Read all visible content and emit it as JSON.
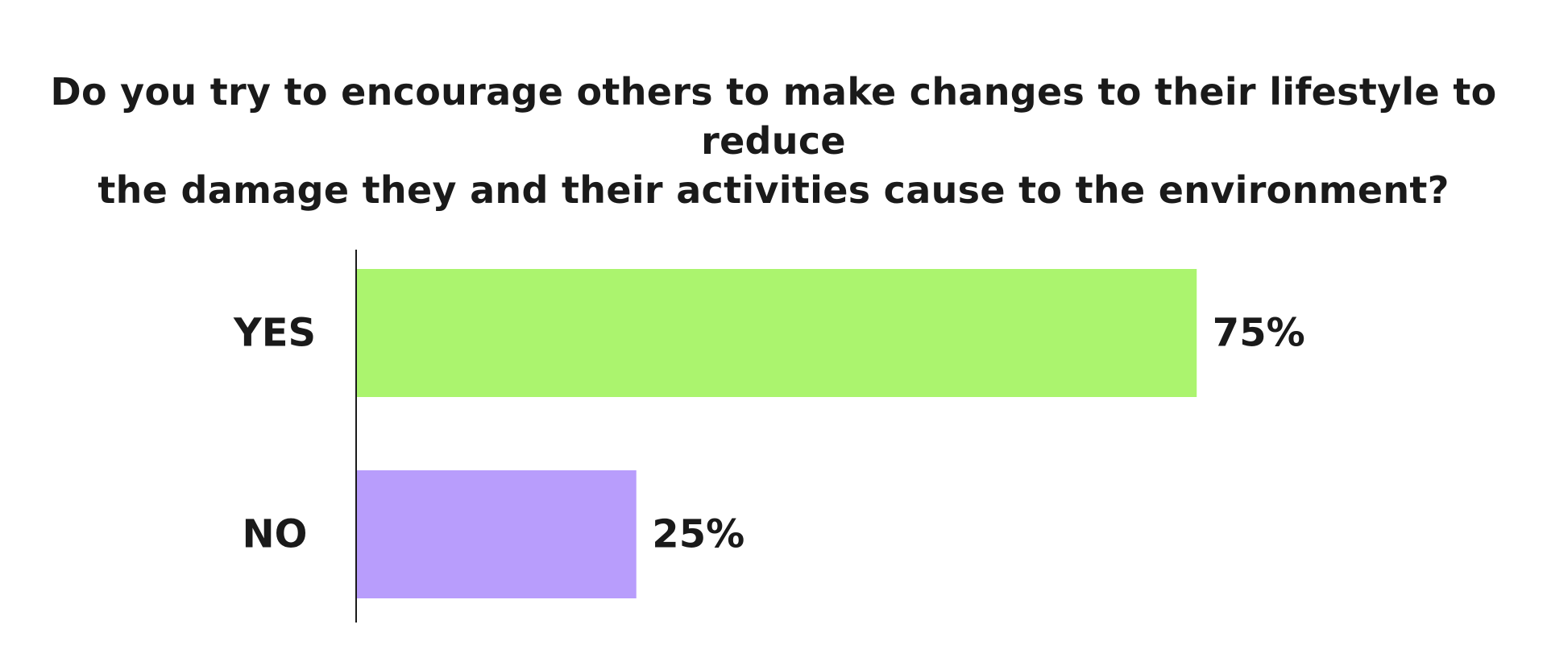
{
  "chart_data": {
    "type": "bar",
    "orientation": "horizontal",
    "title_lines": [
      "Do you try to encourage others to make changes to their lifestyle to reduce",
      "the damage they and their activities cause to the environment?"
    ],
    "categories": [
      "YES",
      "NO"
    ],
    "values": [
      75,
      25
    ],
    "value_labels": [
      "75%",
      "25%"
    ],
    "colors": [
      "#abf46e",
      "#b89dfc"
    ],
    "xlim": [
      0,
      100
    ],
    "grid": false,
    "legend": "none"
  }
}
